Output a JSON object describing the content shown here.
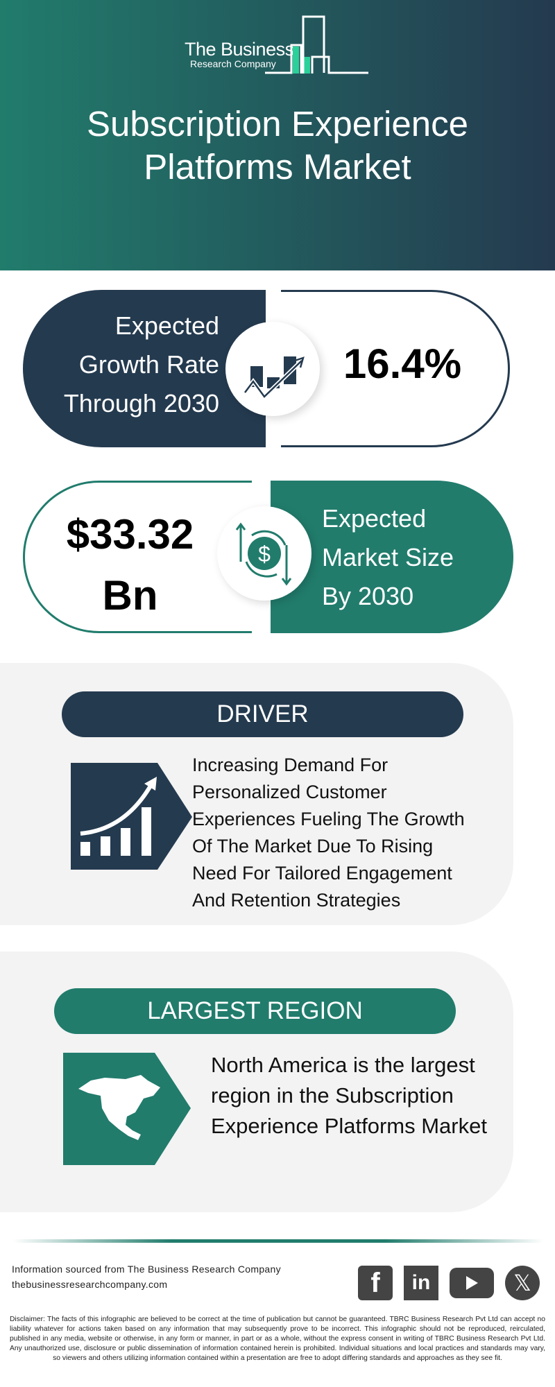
{
  "colors": {
    "dark": "#243a4f",
    "teal": "#217c6c",
    "panel": "#f3f3f3",
    "accent_green": "#2bd19a"
  },
  "logo": {
    "line1": "The Business",
    "line2": "Research Company"
  },
  "title": {
    "line1": "Subscription Experience",
    "line2": "Platforms Market"
  },
  "growth": {
    "label": [
      "Expected",
      "Growth Rate",
      "Through 2030"
    ],
    "value": "16.4%",
    "icon": "growth-chart-icon"
  },
  "size": {
    "value_line1": "$33.32",
    "value_line2": "Bn",
    "label": [
      "Expected",
      "Market Size",
      "By 2030"
    ],
    "icon": "dollar-cycle-icon"
  },
  "driver": {
    "heading": "DRIVER",
    "icon": "rising-bar-chart-icon",
    "text": [
      "Increasing Demand For",
      "Personalized Customer",
      "Experiences Fueling The Growth",
      "Of The Market Due To Rising",
      "Need For Tailored Engagement",
      "And Retention Strategies"
    ]
  },
  "region": {
    "heading": "LARGEST REGION",
    "icon": "north-america-map-icon",
    "text": [
      "North America is the largest",
      "region in the Subscription",
      "Experience Platforms Market"
    ]
  },
  "footer": {
    "source": "Information sourced from The Business Research Company",
    "website": "thebusinessresearchcompany.com",
    "social": [
      "facebook-icon",
      "linkedin-icon",
      "youtube-icon",
      "x-icon"
    ],
    "disclaimer": "Disclaimer: The facts of this infographic are believed to be correct at the time of publication but cannot be guaranteed. TBRC Business Research Pvt Ltd can accept no liability whatever for actions taken based on any information that may subsequently prove to be incorrect. This infographic should not be reproduced, reirculated, published in any media, website or otherwise, in any form or manner, in part or as a whole, without the express consent in writing of TBRC Business Research Pvt Ltd. Any unauthorized use, disclosure or public dissemination of information contained herein is prohibited. Individual situations and local practices and standards may vary, so viewers and others utilizing information contained within a presentation are free to adopt differing standards and approaches as they see fit."
  }
}
